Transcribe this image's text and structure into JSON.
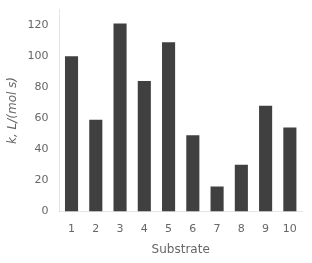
{
  "chart_data": {
    "type": "bar",
    "categories": [
      "1",
      "2",
      "3",
      "4",
      "5",
      "6",
      "7",
      "8",
      "9",
      "10"
    ],
    "values": [
      100,
      59,
      121,
      84,
      109,
      49,
      16,
      30,
      68,
      54
    ],
    "color": "#404040",
    "ylabel": "k, L/(mol s)",
    "xlabel": "Substrate",
    "ylim": [
      0,
      130
    ],
    "yticks": [
      0,
      20,
      40,
      60,
      80,
      100,
      120
    ],
    "grid": false
  }
}
